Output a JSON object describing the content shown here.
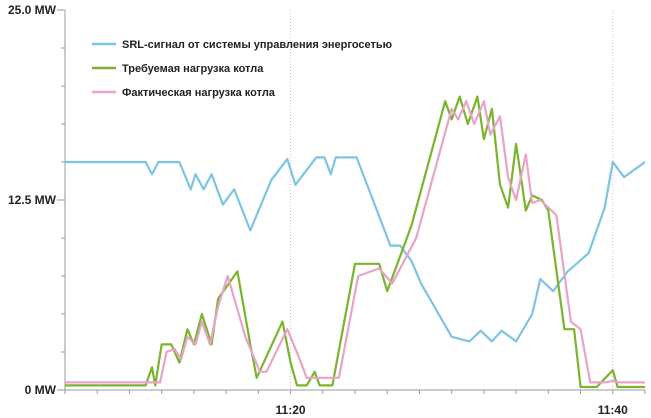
{
  "chart_data": {
    "type": "line",
    "title": "",
    "xlabel": "",
    "ylabel": "",
    "ylim": [
      0,
      25
    ],
    "xlim": [
      "11:06",
      "11:42"
    ],
    "y_ticks": [
      {
        "value": 0,
        "label": "0 MW"
      },
      {
        "value": 12.5,
        "label": "12.5 MW"
      },
      {
        "value": 25,
        "label": "25.0 MW"
      }
    ],
    "x_ticks": [
      {
        "value": "11:20",
        "label": "11:20"
      },
      {
        "value": "11:40",
        "label": "11:40"
      }
    ],
    "grid": {
      "vertical_dotted": true,
      "horizontal": false
    },
    "legend_position": "top-left",
    "series": [
      {
        "name": "SRL-сигнал от системы управления энергосетью",
        "color": "#7dc4e4",
        "x": [
          "11:06",
          "11:11",
          "11:11.4",
          "11:11.8",
          "11:13.1",
          "11:13.8",
          "11:14.1",
          "11:14.6",
          "11:15.1",
          "11:15.8",
          "11:16.5",
          "11:17.5",
          "11:18.8",
          "11:19.8",
          "11:20.3",
          "11:21.6",
          "11:22.1",
          "11:22.5",
          "11:22.8",
          "11:23.4",
          "11:24.1",
          "11:26.2",
          "11:26.8",
          "11:27.5",
          "11:28.1",
          "11:30",
          "11:31.1",
          "11:31.8",
          "11:32.5",
          "11:33.1",
          "11:34",
          "11:35",
          "11:35.5",
          "11:36.3",
          "11:37.2",
          "11:38.5",
          "11:39.5",
          "11:40",
          "11:40.7",
          "11:42"
        ],
        "values": [
          15,
          15,
          14.2,
          15,
          15,
          13.2,
          14.2,
          13.2,
          14.2,
          12.2,
          13.2,
          10.5,
          13.8,
          15.2,
          13.5,
          15.3,
          15.3,
          14.2,
          15.3,
          15.3,
          15.3,
          9.5,
          9.5,
          8.5,
          7,
          3.5,
          3.2,
          3.9,
          3.2,
          3.9,
          3.2,
          5,
          7.3,
          6.5,
          7.8,
          9,
          12,
          15,
          14,
          15
        ]
      },
      {
        "name": "Требуемая нагрузка котла",
        "color": "#7ab42c",
        "x": [
          "11:06",
          "11:11",
          "11:11.4",
          "11:11.6",
          "11:12",
          "11:12.6",
          "11:13.1",
          "11:13.6",
          "11:14",
          "11:14.5",
          "11:15.1",
          "11:15.5",
          "11:16.7",
          "11:17.5",
          "11:17.9",
          "11:19.5",
          "11:20",
          "11:20.4",
          "11:21",
          "11:21.5",
          "11:21.8",
          "11:22.3",
          "11:22.6",
          "11:24",
          "11:25.5",
          "11:26",
          "11:27.5",
          "11:29.6",
          "11:30",
          "11:30.5",
          "11:31",
          "11:31.6",
          "11:32",
          "11:32.5",
          "11:33",
          "11:33.5",
          "11:34",
          "11:34.6",
          "11:35",
          "11:35.6",
          "11:36",
          "11:37",
          "11:37.6",
          "11:38",
          "11:38.5",
          "11:39",
          "11:40",
          "11:40.3",
          "11:40.5",
          "11:42"
        ],
        "values": [
          0.3,
          0.3,
          1.5,
          0.3,
          3,
          3,
          1.8,
          4,
          3,
          5,
          3,
          6,
          7.8,
          3,
          0.8,
          4.5,
          1.8,
          0.3,
          0.3,
          1.2,
          0.3,
          0.3,
          0.3,
          8.3,
          8.3,
          6.5,
          10.8,
          19,
          17.8,
          19.3,
          17.5,
          19.3,
          16.5,
          18.5,
          13.5,
          12,
          16.2,
          11.8,
          12.8,
          12.5,
          11.8,
          4,
          4,
          0.2,
          0.2,
          0.2,
          1.3,
          0.2,
          0.2,
          0.2
        ]
      },
      {
        "name": "Фактическая нагрузка котла",
        "color": "#e8a4c8",
        "x": [
          "11:06",
          "11:11.5",
          "11:11.9",
          "11:12.3",
          "11:12.8",
          "11:13.2",
          "11:13.6",
          "11:14.1",
          "11:14.5",
          "11:15",
          "11:15.5",
          "11:16.1",
          "11:17.2",
          "11:18.1",
          "11:18.5",
          "11:19.8",
          "11:20.5",
          "11:21",
          "11:21.3",
          "11:21.7",
          "11:22.1",
          "11:22.6",
          "11:23",
          "11:24.2",
          "11:25.5",
          "11:26.3",
          "11:27.8",
          "11:30",
          "11:30.4",
          "11:30.9",
          "11:31.4",
          "11:32",
          "11:32.4",
          "11:33",
          "11:33.5",
          "11:34",
          "11:34.6",
          "11:35",
          "11:35.5",
          "11:36",
          "11:36.5",
          "11:37.4",
          "11:38",
          "11:38.6",
          "11:39",
          "11:39.5",
          "11:40",
          "11:40.4",
          "11:40.8",
          "11:42"
        ],
        "values": [
          0.5,
          0.5,
          0.5,
          2.5,
          2.7,
          2,
          3.5,
          3,
          4.5,
          3,
          5.5,
          7.5,
          3.5,
          1.2,
          1.2,
          4,
          2.2,
          0.8,
          0.8,
          0.8,
          0.8,
          0.8,
          0.8,
          7.5,
          8,
          7,
          10,
          18.5,
          17.8,
          19,
          17.5,
          19,
          16.8,
          18,
          14,
          12.5,
          15.5,
          12.3,
          12.5,
          12,
          11.5,
          4.5,
          4,
          0.5,
          0.5,
          0.5,
          0.6,
          0.5,
          0.5,
          0.5
        ]
      }
    ]
  }
}
